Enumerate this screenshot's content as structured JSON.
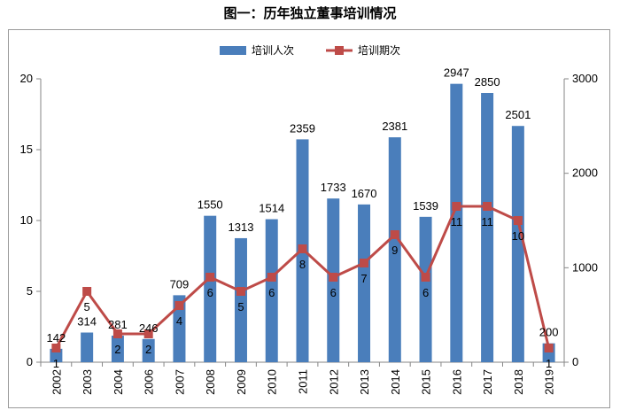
{
  "title": "图一：历年独立董事培训情况",
  "chart_data": {
    "type": "bar+line",
    "categories": [
      "2002",
      "2003",
      "2004",
      "2006",
      "2007",
      "2008",
      "2009",
      "2010",
      "2011",
      "2012",
      "2013",
      "2014",
      "2015",
      "2016",
      "2017",
      "2018",
      "2019"
    ],
    "series": [
      {
        "name": "培训人次",
        "type": "bar",
        "axis": "right",
        "color": "#4a7ebb",
        "values": [
          142,
          314,
          281,
          246,
          709,
          1550,
          1313,
          1514,
          2359,
          1733,
          1670,
          2381,
          1539,
          2947,
          2850,
          2501,
          200
        ]
      },
      {
        "name": "培训期次",
        "type": "line",
        "axis": "left",
        "color": "#be4b48",
        "values": [
          1,
          5,
          2,
          2,
          4,
          6,
          5,
          6,
          8,
          6,
          7,
          9,
          6,
          11,
          11,
          10,
          1
        ]
      }
    ],
    "y_left": {
      "lim": [
        0,
        20
      ],
      "ticks": [
        "0",
        "5",
        "10",
        "15",
        "20"
      ]
    },
    "y_right": {
      "lim": [
        0,
        3000
      ],
      "ticks": [
        "0",
        "1000",
        "2000",
        "3000"
      ]
    },
    "legend_position": "top",
    "grid": false
  }
}
